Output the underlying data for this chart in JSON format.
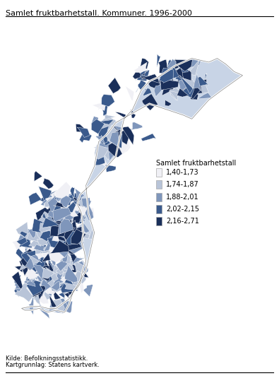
{
  "title": "Samlet fruktbarhetstall. Kommuner. 1996-2000",
  "legend_title": "Samlet fruktbarhetstall",
  "legend_labels": [
    "1,40-1,73",
    "1,74-1,87",
    "1,88-2,01",
    "2,02-2,15",
    "2,16-2,71"
  ],
  "legend_colors": [
    "#f0f0f5",
    "#b8c4d8",
    "#7f96bb",
    "#3a5a8c",
    "#1a2f5a"
  ],
  "source_line1": "Kilde: Befolkningsstatistikk.",
  "source_line2": "Kartgrunnlag: Statens kartverk.",
  "bg_color": "#ffffff",
  "title_fontsize": 8,
  "legend_fontsize": 7,
  "source_fontsize": 6,
  "figsize": [
    3.95,
    5.42
  ],
  "dpi": 100
}
